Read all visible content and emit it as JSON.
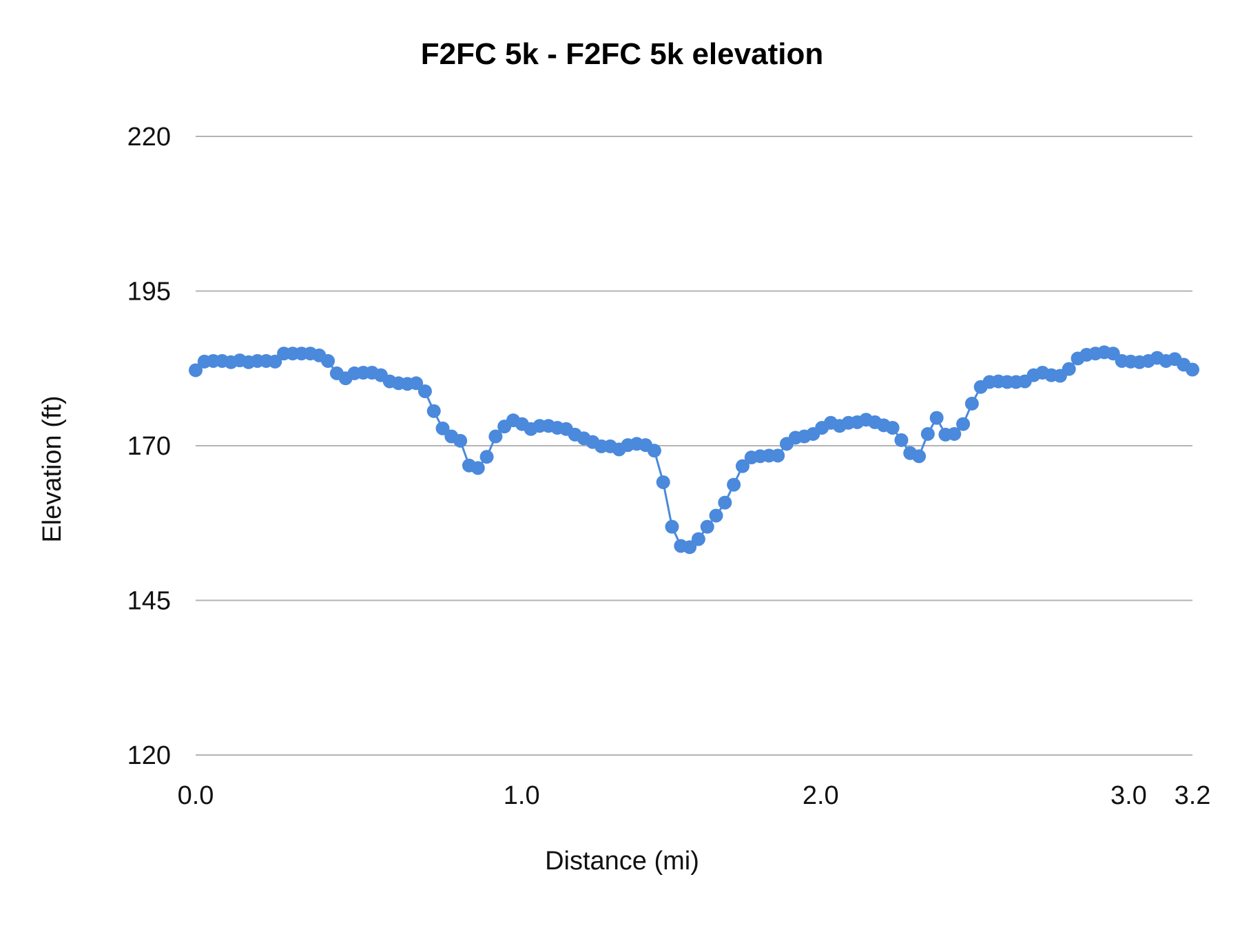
{
  "chart_data": {
    "type": "line",
    "title": "F2FC 5k - F2FC 5k elevation",
    "xlabel": "Distance (mi)",
    "ylabel": "Elevation (ft)",
    "ylim": [
      120,
      220
    ],
    "yticks": [
      "220",
      "195",
      "170",
      "145",
      "120"
    ],
    "xticks": [
      "0.0",
      "1.0",
      "2.0",
      "3.0",
      "3.2"
    ],
    "xlim": [
      0.0,
      3.2
    ],
    "grid": true,
    "legend": "none",
    "markers": true,
    "color": "#4a89dc",
    "series": [
      {
        "values": [
          182.2,
          183.6,
          183.7,
          183.7,
          183.5,
          183.8,
          183.5,
          183.7,
          183.7,
          183.6,
          184.9,
          184.9,
          184.9,
          184.9,
          184.6,
          183.7,
          181.7,
          180.9,
          181.7,
          181.8,
          181.8,
          181.4,
          180.4,
          180.1,
          180.0,
          180.1,
          178.8,
          175.6,
          172.8,
          171.5,
          170.8,
          166.8,
          166.4,
          168.2,
          171.5,
          173.1,
          174.1,
          173.5,
          172.7,
          173.2,
          173.2,
          172.9,
          172.7,
          171.8,
          171.2,
          170.6,
          169.9,
          169.9,
          169.4,
          170.1,
          170.3,
          170.1,
          169.2,
          164.1,
          156.9,
          153.8,
          153.6,
          154.9,
          156.9,
          158.7,
          160.8,
          163.7,
          166.7,
          168.1,
          168.3,
          168.4,
          168.4,
          170.3,
          171.3,
          171.5,
          171.9,
          172.9,
          173.7,
          173.2,
          173.7,
          173.8,
          174.2,
          173.8,
          173.3,
          172.9,
          170.9,
          168.8,
          168.3,
          171.9,
          174.5,
          171.8,
          171.9,
          173.5,
          176.8,
          179.5,
          180.3,
          180.4,
          180.3,
          180.3,
          180.4,
          181.4,
          181.8,
          181.4,
          181.3,
          182.4,
          184.1,
          184.7,
          184.9,
          185.1,
          184.9,
          183.7,
          183.6,
          183.5,
          183.7,
          184.2,
          183.7,
          184.0,
          183.1,
          182.3
        ]
      }
    ]
  }
}
